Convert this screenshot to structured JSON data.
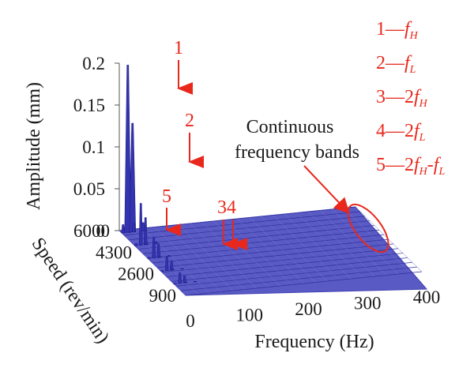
{
  "colors": {
    "surface": "#3f3fb4",
    "surface_light": "#8c8cd8",
    "annotation": "#e8281c",
    "text": "#1a1a1a"
  },
  "chart_data": {
    "type": "3d-waterfall",
    "xlabel": "Frequency (Hz)",
    "ylabel": "Speed (rev/min)",
    "zlabel": "Amplitude (mm)",
    "xticks": [
      "0",
      "100",
      "200",
      "300",
      "400"
    ],
    "yticks": [
      "900",
      "2600",
      "4300",
      "6000"
    ],
    "zticks": [
      "0",
      "0.05",
      "0.1",
      "0.15",
      "0.2"
    ],
    "xlim": [
      0,
      400
    ],
    "ylim": [
      900,
      6000
    ],
    "zlim": [
      0,
      0.2
    ],
    "peaks": [
      {
        "label": "1",
        "frequency": 10,
        "amplitude": 0.2
      },
      {
        "label": "2",
        "frequency": 18,
        "amplitude": 0.13
      },
      {
        "label": "5",
        "frequency": 2,
        "amplitude": 0.01
      },
      {
        "label": "3",
        "frequency": 20,
        "amplitude": 0.01
      },
      {
        "label": "4",
        "frequency": 36,
        "amplitude": 0.01
      }
    ],
    "annotations": {
      "bands": "Continuous\nfrequency bands",
      "peak_labels": [
        "1",
        "2",
        "5",
        "34"
      ]
    },
    "legend": [
      {
        "num": "1",
        "dash": "—",
        "coef": "",
        "sym": "f",
        "sub": "H",
        "extra": ""
      },
      {
        "num": "2",
        "dash": "—",
        "coef": "",
        "sym": "f",
        "sub": "L",
        "extra": ""
      },
      {
        "num": "3",
        "dash": "—",
        "coef": "2",
        "sym": "f",
        "sub": "H",
        "extra": ""
      },
      {
        "num": "4",
        "dash": "—",
        "coef": "2",
        "sym": "f",
        "sub": "L",
        "extra": ""
      },
      {
        "num": "5",
        "dash": "—",
        "coef": "2",
        "sym": "f",
        "sub": "H",
        "extra": "-f",
        "extra_sub": "L"
      }
    ]
  }
}
